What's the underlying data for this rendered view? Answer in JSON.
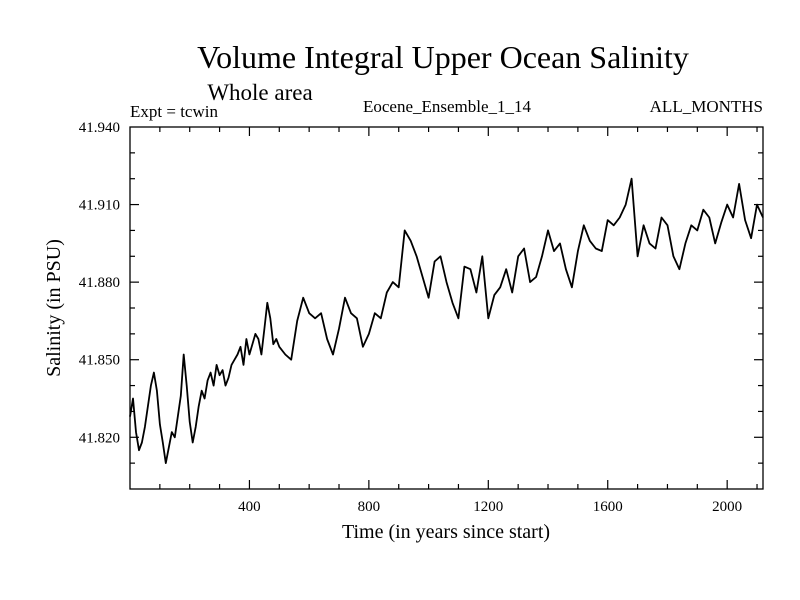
{
  "chart_data": {
    "type": "line",
    "title": "Volume Integral Upper Ocean Salinity",
    "subtitle": "Whole area",
    "expt_label": "Expt = tcwin",
    "ensemble_label": "Eocene_Ensemble_1_14",
    "months_label": "ALL_MONTHS",
    "xlabel": "Time (in years since start)",
    "ylabel": "Salinity (in PSU)",
    "xlim": [
      0,
      2120
    ],
    "ylim": [
      41.8,
      41.94
    ],
    "x_ticks": [
      400,
      800,
      1200,
      1600,
      2000
    ],
    "x_tick_labels": [
      "400",
      "800",
      "1200",
      "1600",
      "2000"
    ],
    "y_ticks": [
      41.82,
      41.85,
      41.88,
      41.91,
      41.94
    ],
    "y_tick_labels": [
      "41.820",
      "41.850",
      "41.880",
      "41.910",
      "41.940"
    ],
    "grid": false,
    "series": [
      {
        "color": "#000000",
        "x": [
          0,
          10,
          20,
          30,
          40,
          50,
          60,
          70,
          80,
          90,
          100,
          110,
          120,
          130,
          140,
          150,
          160,
          170,
          180,
          190,
          200,
          210,
          220,
          230,
          240,
          250,
          260,
          270,
          280,
          290,
          300,
          310,
          320,
          330,
          340,
          350,
          360,
          370,
          380,
          390,
          400,
          410,
          420,
          430,
          440,
          450,
          460,
          470,
          480,
          490,
          500,
          520,
          540,
          560,
          580,
          600,
          620,
          640,
          660,
          680,
          700,
          720,
          740,
          760,
          780,
          800,
          820,
          840,
          860,
          880,
          900,
          920,
          940,
          960,
          980,
          1000,
          1020,
          1040,
          1060,
          1080,
          1100,
          1120,
          1140,
          1160,
          1180,
          1200,
          1220,
          1240,
          1260,
          1280,
          1300,
          1320,
          1340,
          1360,
          1380,
          1400,
          1420,
          1440,
          1460,
          1480,
          1500,
          1520,
          1540,
          1560,
          1580,
          1600,
          1620,
          1640,
          1660,
          1680,
          1700,
          1720,
          1740,
          1760,
          1780,
          1800,
          1820,
          1840,
          1860,
          1880,
          1900,
          1920,
          1940,
          1960,
          1980,
          2000,
          2020,
          2040,
          2060,
          2080,
          2100,
          2120
        ],
        "y": [
          41.828,
          41.835,
          41.822,
          41.815,
          41.818,
          41.824,
          41.832,
          41.84,
          41.845,
          41.838,
          41.825,
          41.818,
          41.81,
          41.816,
          41.822,
          41.82,
          41.828,
          41.836,
          41.852,
          41.84,
          41.826,
          41.818,
          41.824,
          41.832,
          41.838,
          41.835,
          41.842,
          41.845,
          41.84,
          41.848,
          41.844,
          41.846,
          41.84,
          41.843,
          41.848,
          41.85,
          41.852,
          41.855,
          41.848,
          41.858,
          41.852,
          41.856,
          41.86,
          41.858,
          41.852,
          41.862,
          41.872,
          41.866,
          41.856,
          41.858,
          41.855,
          41.852,
          41.85,
          41.865,
          41.874,
          41.868,
          41.866,
          41.868,
          41.858,
          41.852,
          41.862,
          41.874,
          41.868,
          41.866,
          41.855,
          41.86,
          41.868,
          41.866,
          41.876,
          41.88,
          41.878,
          41.9,
          41.896,
          41.89,
          41.882,
          41.874,
          41.888,
          41.89,
          41.88,
          41.872,
          41.866,
          41.886,
          41.885,
          41.876,
          41.89,
          41.866,
          41.875,
          41.878,
          41.885,
          41.876,
          41.89,
          41.893,
          41.88,
          41.882,
          41.89,
          41.9,
          41.892,
          41.895,
          41.885,
          41.878,
          41.892,
          41.902,
          41.896,
          41.893,
          41.892,
          41.904,
          41.902,
          41.905,
          41.91,
          41.92,
          41.89,
          41.902,
          41.895,
          41.893,
          41.905,
          41.902,
          41.89,
          41.885,
          41.895,
          41.902,
          41.9,
          41.908,
          41.905,
          41.895,
          41.903,
          41.91,
          41.905,
          41.918,
          41.904,
          41.897,
          41.91,
          41.905
        ]
      }
    ]
  }
}
